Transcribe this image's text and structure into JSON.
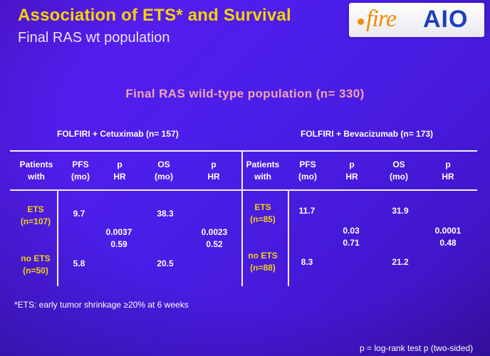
{
  "header": {
    "title": "Association of ETS* and Survival",
    "subtitle": "Final RAS wt population",
    "logo_fire": "fire",
    "logo_aio": "AIO"
  },
  "table_title": "Final RAS wild-type population (n= 330)",
  "groups": {
    "cetuximab": "FOLFIRI + Cetuximab (n= 157)",
    "bevacizumab": "FOLFIRI + Bevacizumab (n= 173)"
  },
  "columns": [
    {
      "line1": "Patients",
      "line2": "with"
    },
    {
      "line1": "PFS",
      "line2": "(mo)"
    },
    {
      "line1": "p",
      "line2": "HR"
    },
    {
      "line1": "OS",
      "line2": "(mo)"
    },
    {
      "line1": "p",
      "line2": "HR"
    }
  ],
  "cetuximab": {
    "ets_label": "ETS",
    "ets_n": "(n=107)",
    "noets_label": "no ETS",
    "noets_n": "(n=50)",
    "ets_pfs": "9.7",
    "ets_os": "38.3",
    "noets_pfs": "5.8",
    "noets_os": "20.5",
    "pfs_p": "0.0037",
    "pfs_hr": "0.59",
    "os_p": "0.0023",
    "os_hr": "0.52"
  },
  "bevacizumab": {
    "ets_label": "ETS",
    "ets_n": "(n=85)",
    "noets_label": "no ETS",
    "noets_n": "(n=88)",
    "ets_pfs": "11.7",
    "ets_os": "31.9",
    "noets_pfs": "8.3",
    "noets_os": "21.2",
    "pfs_p": "0.03",
    "pfs_hr": "0.71",
    "os_p": "0.0001",
    "os_hr": "0.48"
  },
  "footnote": "*ETS: early tumor shrinkage ≥20% at 6 weeks",
  "legend": "p = log-rank test p (two-sided)",
  "colors": {
    "background": "#4a1ee8",
    "title": "#f6d300",
    "table_title": "#f3a4ae",
    "row_label": "#f4cf10",
    "logo_fire": "#f08a00",
    "logo_aio": "#1d3fbf"
  }
}
